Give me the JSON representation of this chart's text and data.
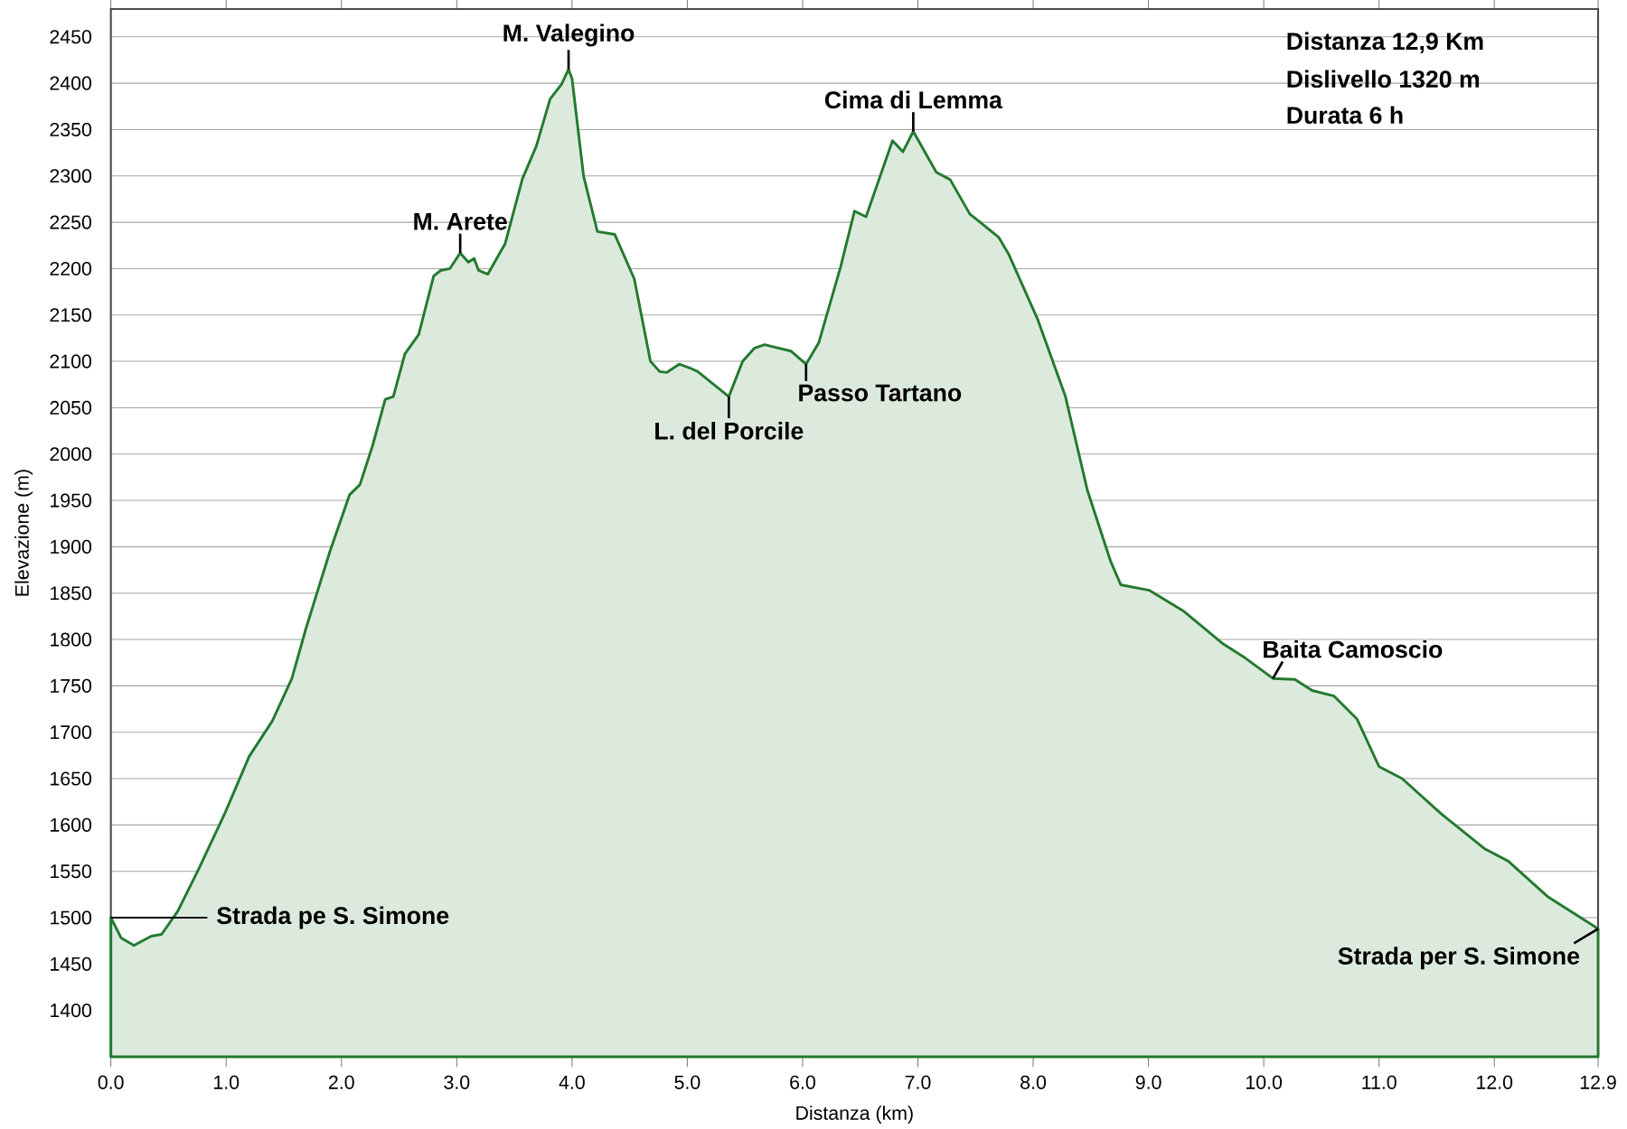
{
  "chart_data": {
    "type": "area",
    "xlabel": "Distanza (km)",
    "ylabel": "Elevazione (m)",
    "color": "#237a2f",
    "x": [
      0,
      0.09,
      0.2,
      0.35,
      0.44,
      0.58,
      0.76,
      0.99,
      1.2,
      1.4,
      1.57,
      1.69,
      1.9,
      2.07,
      2.16,
      2.27,
      2.38,
      2.45,
      2.55,
      2.67,
      2.8,
      2.86,
      2.94,
      3.03,
      3.1,
      3.15,
      3.19,
      3.27,
      3.42,
      3.57,
      3.69,
      3.81,
      3.91,
      3.97,
      4.0,
      4.1,
      4.22,
      4.37,
      4.54,
      4.68,
      4.76,
      4.82,
      4.93,
      5.02,
      5.09,
      5.36,
      5.48,
      5.58,
      5.67,
      5.9,
      6.03,
      6.14,
      6.33,
      6.45,
      6.55,
      6.78,
      6.87,
      6.96,
      7.16,
      7.28,
      7.45,
      7.7,
      7.79,
      8.04,
      8.28,
      8.47,
      8.67,
      8.76,
      9.01,
      9.3,
      9.64,
      9.84,
      10.08,
      10.27,
      10.42,
      10.61,
      10.81,
      11.0,
      11.2,
      11.54,
      11.92,
      12.12,
      12.46,
      12.9
    ],
    "values": [
      1500,
      1478,
      1470,
      1480,
      1482,
      1507,
      1552,
      1613,
      1674,
      1712,
      1758,
      1811,
      1895,
      1956,
      1967,
      2009,
      2059,
      2062,
      2108,
      2129,
      2192,
      2198,
      2200,
      2217,
      2207,
      2211,
      2198,
      2194,
      2227,
      2297,
      2332,
      2383,
      2399,
      2415,
      2405,
      2300,
      2240,
      2237,
      2189,
      2100,
      2089,
      2088,
      2097,
      2093,
      2089,
      2062,
      2100,
      2114,
      2118,
      2111,
      2097,
      2120,
      2202,
      2262,
      2256,
      2338,
      2326,
      2348,
      2304,
      2296,
      2259,
      2234,
      2215,
      2145,
      2062,
      1961,
      1885,
      1859,
      1853,
      1831,
      1796,
      1780,
      1758,
      1757,
      1745,
      1739,
      1714,
      1663,
      1650,
      1612,
      1574,
      1561,
      1523,
      1488
    ],
    "xlim": [
      0,
      12.9
    ],
    "ylim": [
      1350,
      2480
    ],
    "xticks": [
      {
        "value": 0,
        "label": "0.0"
      },
      {
        "value": 1,
        "label": "1.0"
      },
      {
        "value": 2,
        "label": "2.0"
      },
      {
        "value": 3,
        "label": "3.0"
      },
      {
        "value": 4,
        "label": "4.0"
      },
      {
        "value": 5,
        "label": "5.0"
      },
      {
        "value": 6,
        "label": "6.0"
      },
      {
        "value": 7,
        "label": "7.0"
      },
      {
        "value": 8,
        "label": "8.0"
      },
      {
        "value": 9,
        "label": "9.0"
      },
      {
        "value": 10,
        "label": "10.0"
      },
      {
        "value": 11,
        "label": "11.0"
      },
      {
        "value": 12,
        "label": "12.0"
      },
      {
        "value": 12.9,
        "label": "12.9"
      }
    ],
    "yticks": [
      1400,
      1450,
      1500,
      1550,
      1600,
      1650,
      1700,
      1750,
      1800,
      1850,
      1900,
      1950,
      2000,
      2050,
      2100,
      2150,
      2200,
      2250,
      2300,
      2350,
      2400,
      2450
    ],
    "grid": "y",
    "annotations": [
      {
        "text": "Strada pe S. Simone",
        "x": 0,
        "y": 1500
      },
      {
        "text": "M. Arete",
        "x": 3.03,
        "y": 2217
      },
      {
        "text": "M. Valegino",
        "x": 3.97,
        "y": 2415
      },
      {
        "text": "L. del Porcile",
        "x": 5.36,
        "y": 2062
      },
      {
        "text": "Passo Tartano",
        "x": 6.03,
        "y": 2097
      },
      {
        "text": "Cima di Lemma",
        "x": 6.96,
        "y": 2348
      },
      {
        "text": "Baita Camoscio",
        "x": 10.08,
        "y": 1758
      },
      {
        "text": "Strada per S. Simone",
        "x": 12.9,
        "y": 1488
      },
      "Distanza 12,9 Km",
      "Dislivello 1320 m",
      "Durata 6 h"
    ]
  }
}
